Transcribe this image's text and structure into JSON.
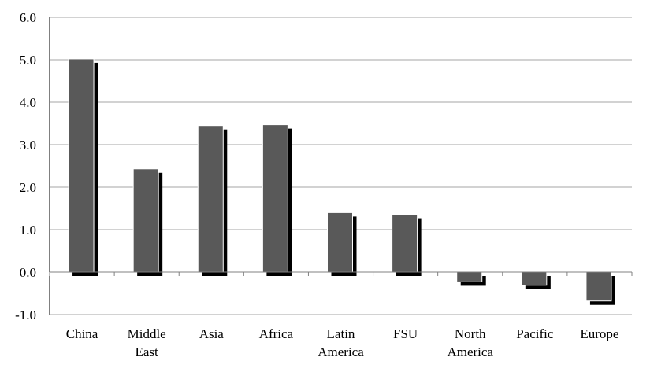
{
  "chart_data": {
    "type": "bar",
    "categories": [
      [
        "China"
      ],
      [
        "Middle",
        "East"
      ],
      [
        "Asia"
      ],
      [
        "Africa"
      ],
      [
        "Latin",
        "America"
      ],
      [
        "FSU"
      ],
      [
        "North",
        "America"
      ],
      [
        "Pacific"
      ],
      [
        "Europe"
      ]
    ],
    "values": [
      5.02,
      2.43,
      3.45,
      3.47,
      1.4,
      1.36,
      -0.23,
      -0.31,
      -0.68
    ],
    "yticks": [
      "-1.0",
      "0.0",
      "1.0",
      "2.0",
      "3.0",
      "4.0",
      "5.0",
      "6.0"
    ],
    "ylim": [
      -1,
      6
    ],
    "grid": true,
    "colors": {
      "bar": "#595959",
      "shadow": "#000000",
      "grid": "#a6a6a6",
      "axis": "#000000"
    }
  }
}
